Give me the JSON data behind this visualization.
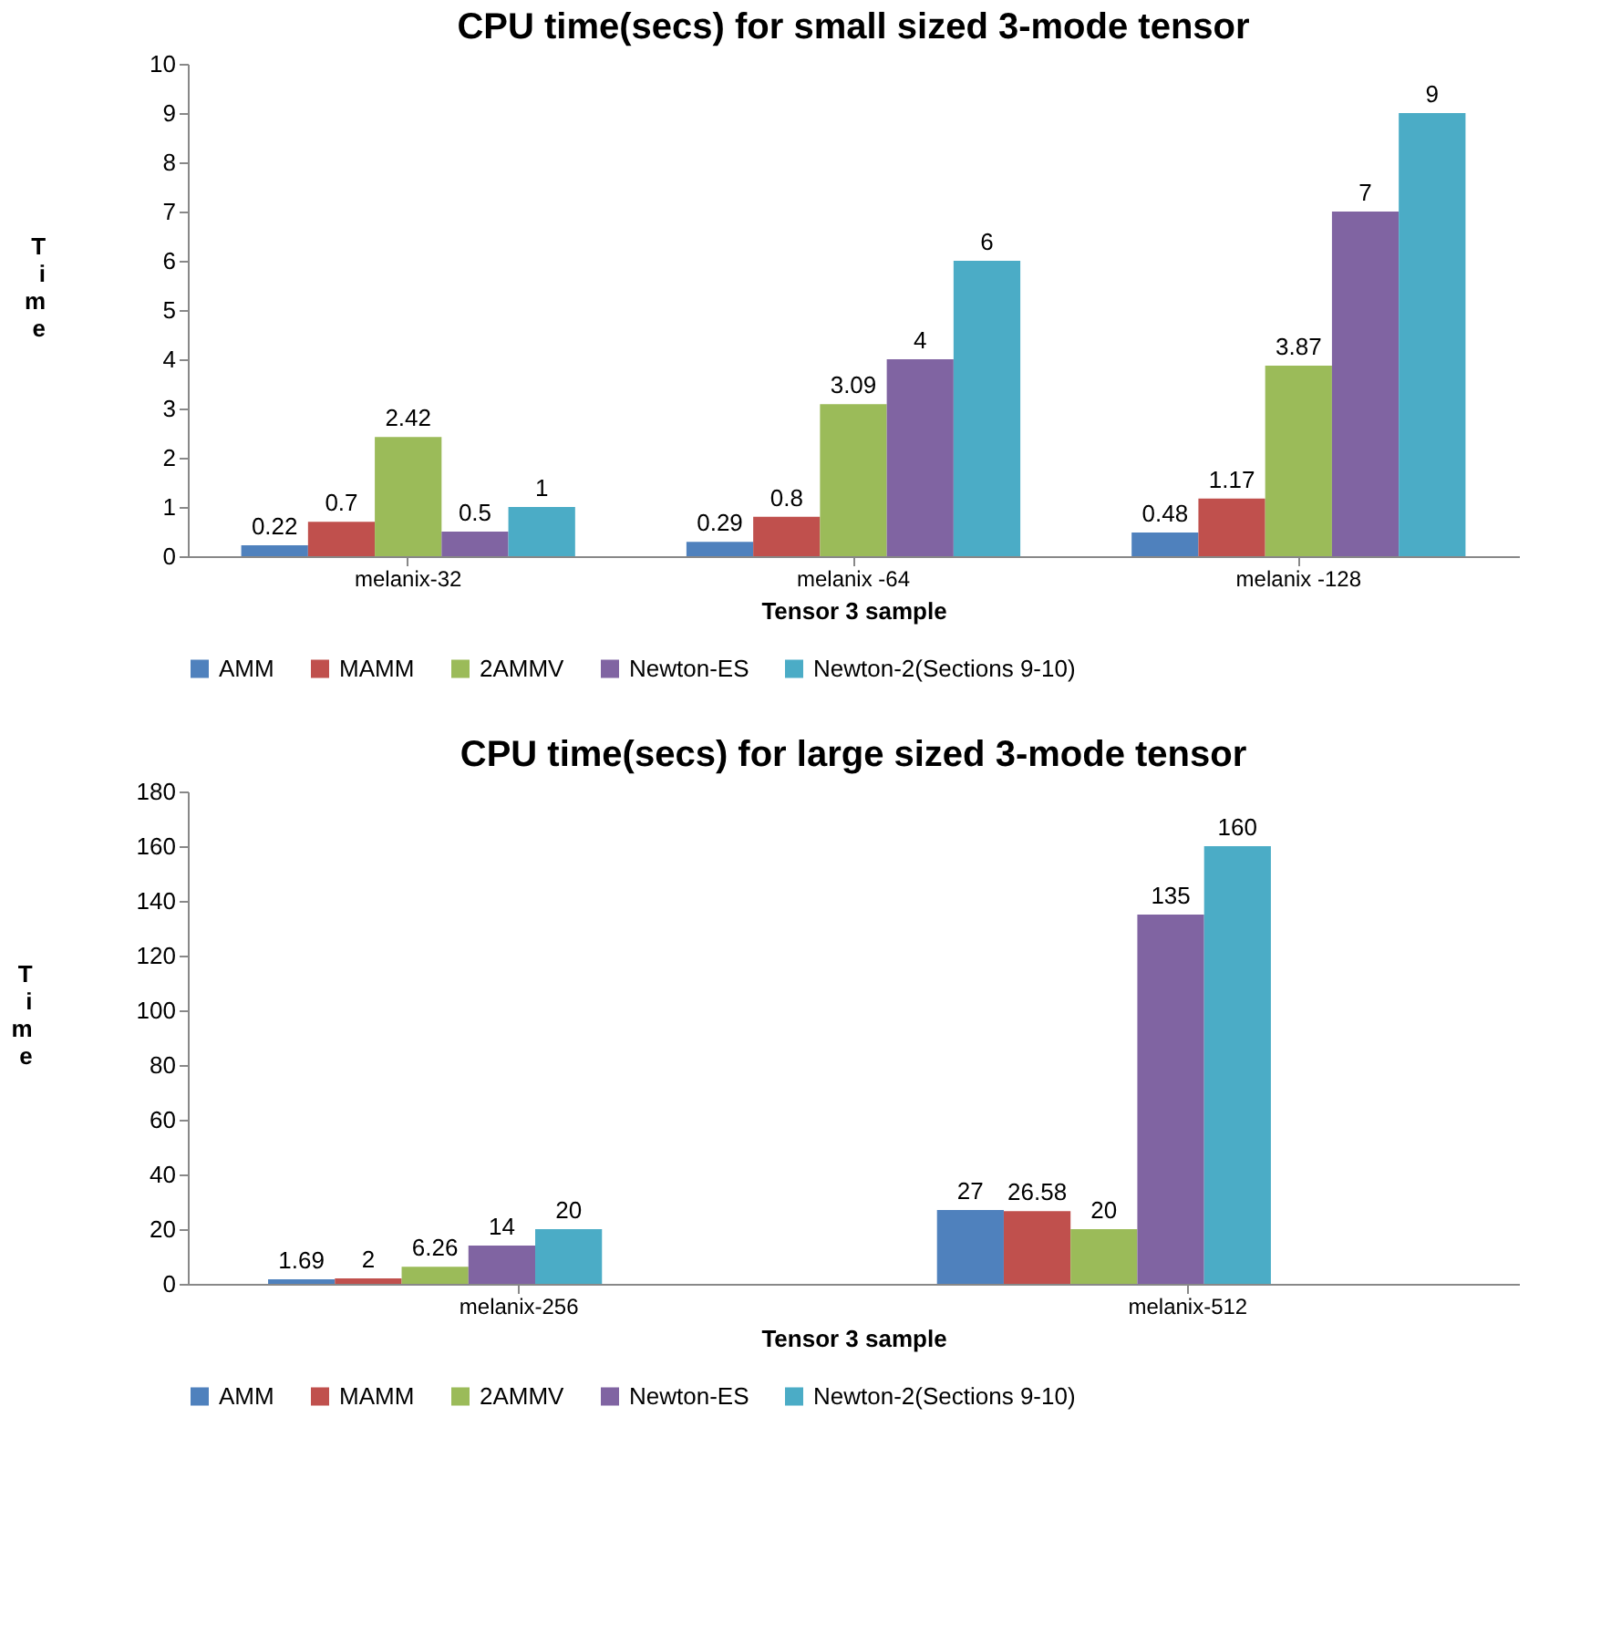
{
  "chart_data": [
    {
      "type": "bar",
      "title": "CPU time(secs) for small sized 3-mode tensor",
      "xlabel": "Tensor 3 sample",
      "ylabel": "Time",
      "categories": [
        "melanix-32",
        "melanix -64",
        "melanix -128"
      ],
      "series": [
        {
          "name": "AMM",
          "color": "#4f81bd",
          "values": [
            0.22,
            0.29,
            0.48
          ]
        },
        {
          "name": "MAMM",
          "color": "#c0504d",
          "values": [
            0.7,
            0.8,
            1.17
          ]
        },
        {
          "name": "2AMMV",
          "color": "#9bbb59",
          "values": [
            2.42,
            3.09,
            3.87
          ]
        },
        {
          "name": "Newton-ES",
          "color": "#8064a2",
          "values": [
            0.5,
            4,
            7
          ]
        },
        {
          "name": "Newton-2(Sections 9-10)",
          "color": "#4bacc6",
          "values": [
            1,
            6,
            9
          ]
        }
      ],
      "ylim": [
        0,
        10
      ],
      "yticks": [
        0,
        1,
        2,
        3,
        4,
        5,
        6,
        7,
        8,
        9,
        10
      ],
      "data_labels": true,
      "grid": false,
      "legend": "bottom"
    },
    {
      "type": "bar",
      "title": "CPU time(secs) for large sized 3-mode tensor",
      "xlabel": "Tensor 3 sample",
      "ylabel": "Time",
      "categories": [
        "melanix-256",
        "melanix-512"
      ],
      "series": [
        {
          "name": "AMM",
          "color": "#4f81bd",
          "values": [
            1.69,
            27
          ]
        },
        {
          "name": "MAMM",
          "color": "#c0504d",
          "values": [
            2,
            26.58
          ]
        },
        {
          "name": "2AMMV",
          "color": "#9bbb59",
          "values": [
            6.26,
            20
          ]
        },
        {
          "name": "Newton-ES",
          "color": "#8064a2",
          "values": [
            14,
            135
          ]
        },
        {
          "name": "Newton-2(Sections 9-10)",
          "color": "#4bacc6",
          "values": [
            20,
            160
          ]
        }
      ],
      "ylim": [
        0,
        180
      ],
      "yticks": [
        0,
        20,
        40,
        60,
        80,
        100,
        120,
        140,
        160,
        180
      ],
      "data_labels": true,
      "grid": false,
      "legend": "bottom"
    }
  ]
}
